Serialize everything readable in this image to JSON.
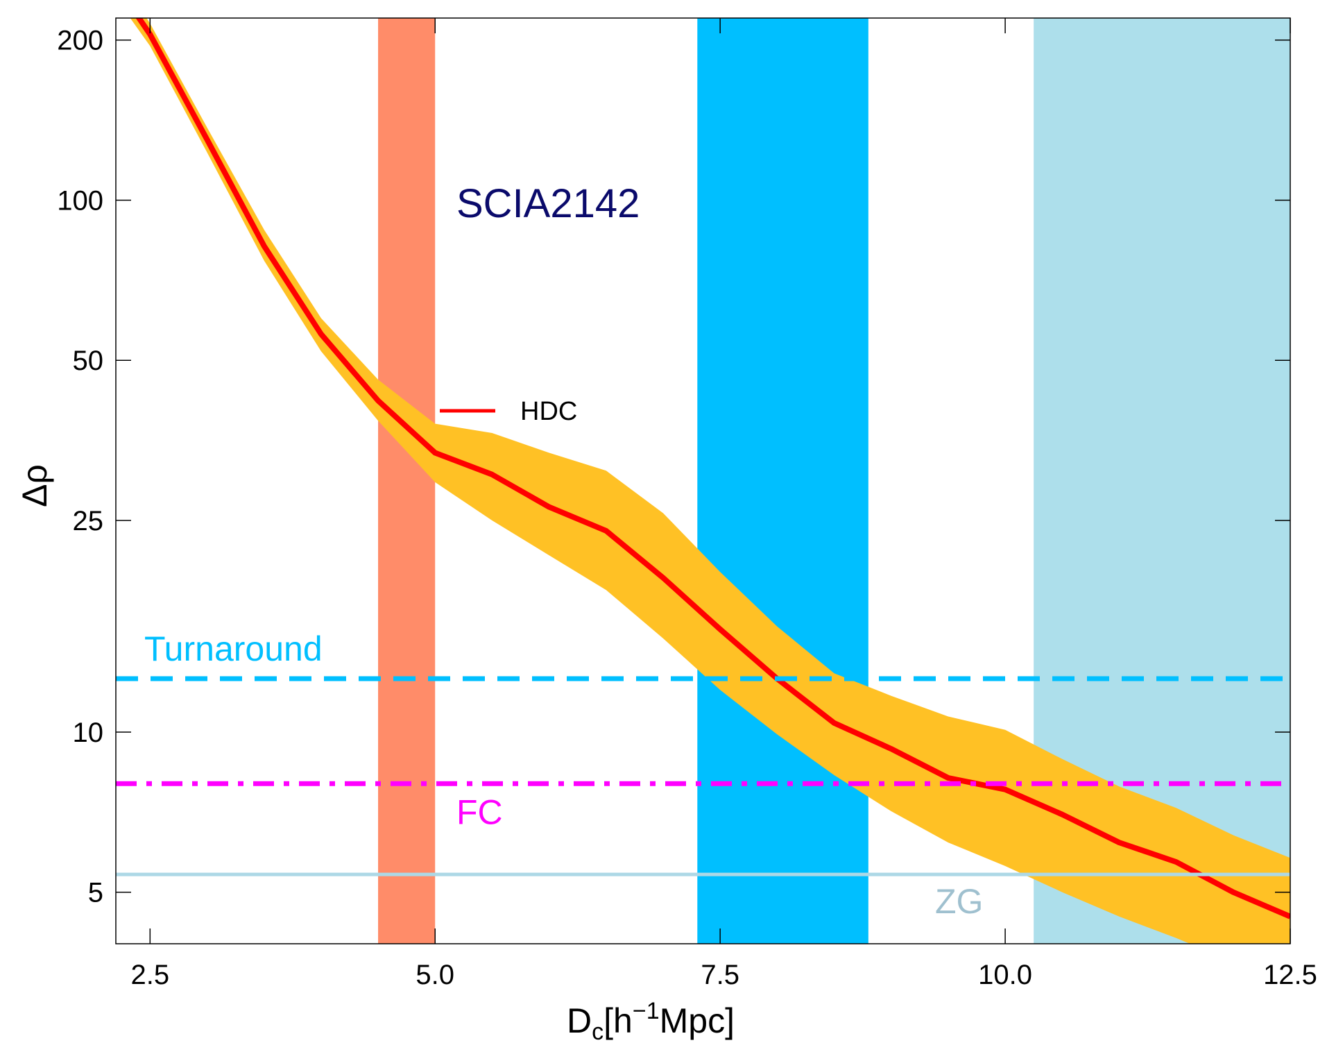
{
  "chart_data": {
    "type": "line",
    "title": "SCIA2142",
    "xlabel": {
      "base": "D",
      "sub": "c",
      "rest1": "[h",
      "sup": "−1",
      "rest2": "Mpc]"
    },
    "ylabel": "Δρ",
    "y_scale": "log",
    "xlim": [
      2.2,
      12.5
    ],
    "ylim": [
      4.0,
      220
    ],
    "x_ticks": [
      "2.5",
      "5.0",
      "7.5",
      "10.0",
      "12.5"
    ],
    "x_tick_values": [
      2.5,
      5.0,
      7.5,
      10.0,
      12.5
    ],
    "y_ticks": [
      "5",
      "10",
      "25",
      "50",
      "100",
      "200"
    ],
    "y_tick_values": [
      5,
      10,
      25,
      50,
      100,
      200
    ],
    "bands": [
      {
        "x0": 4.5,
        "x1": 5.0,
        "color": "#FF8C69"
      },
      {
        "x0": 7.3,
        "x1": 8.8,
        "color": "#00BFFF"
      },
      {
        "x0": 10.25,
        "x1": 12.5,
        "color": "#ADDFEB"
      }
    ],
    "hlines": [
      {
        "label": "Turnaround",
        "y": 12.6,
        "style": "dashed",
        "color": "#00BFFF"
      },
      {
        "label": "FC",
        "y": 8.0,
        "style": "dashdot",
        "color": "#FF00FF"
      },
      {
        "label": "ZG",
        "y": 5.4,
        "style": "solid",
        "color": "#ADD8E6",
        "label_color": "#9FC0CF"
      }
    ],
    "series": [
      {
        "name": "HDC",
        "color": "#FF0000",
        "band_color": "#FFC125",
        "x": [
          2.2,
          2.5,
          3.0,
          3.5,
          4.0,
          4.5,
          5.0,
          5.5,
          6.0,
          6.5,
          7.0,
          7.5,
          8.0,
          8.5,
          9.0,
          9.5,
          10.0,
          10.5,
          11.0,
          11.5,
          12.0,
          12.5
        ],
        "y": [
          255,
          205,
          130,
          82,
          56,
          42,
          33.5,
          30.5,
          26.5,
          23.9,
          19.5,
          15.6,
          12.6,
          10.4,
          9.3,
          8.2,
          7.8,
          7.0,
          6.2,
          5.7,
          5.0,
          4.5
        ],
        "lower": [
          240,
          195,
          123,
          77,
          52,
          38.5,
          29.5,
          25.0,
          21.5,
          18.5,
          15.0,
          12.0,
          9.9,
          8.3,
          7.1,
          6.2,
          5.6,
          5.0,
          4.5,
          4.1,
          3.7,
          3.4
        ],
        "upper": [
          270,
          215,
          137,
          88,
          60,
          46,
          38.0,
          36.5,
          33.5,
          31.0,
          25.8,
          20.0,
          15.8,
          12.9,
          11.7,
          10.7,
          10.1,
          8.9,
          7.9,
          7.2,
          6.4,
          5.8
        ]
      }
    ]
  }
}
